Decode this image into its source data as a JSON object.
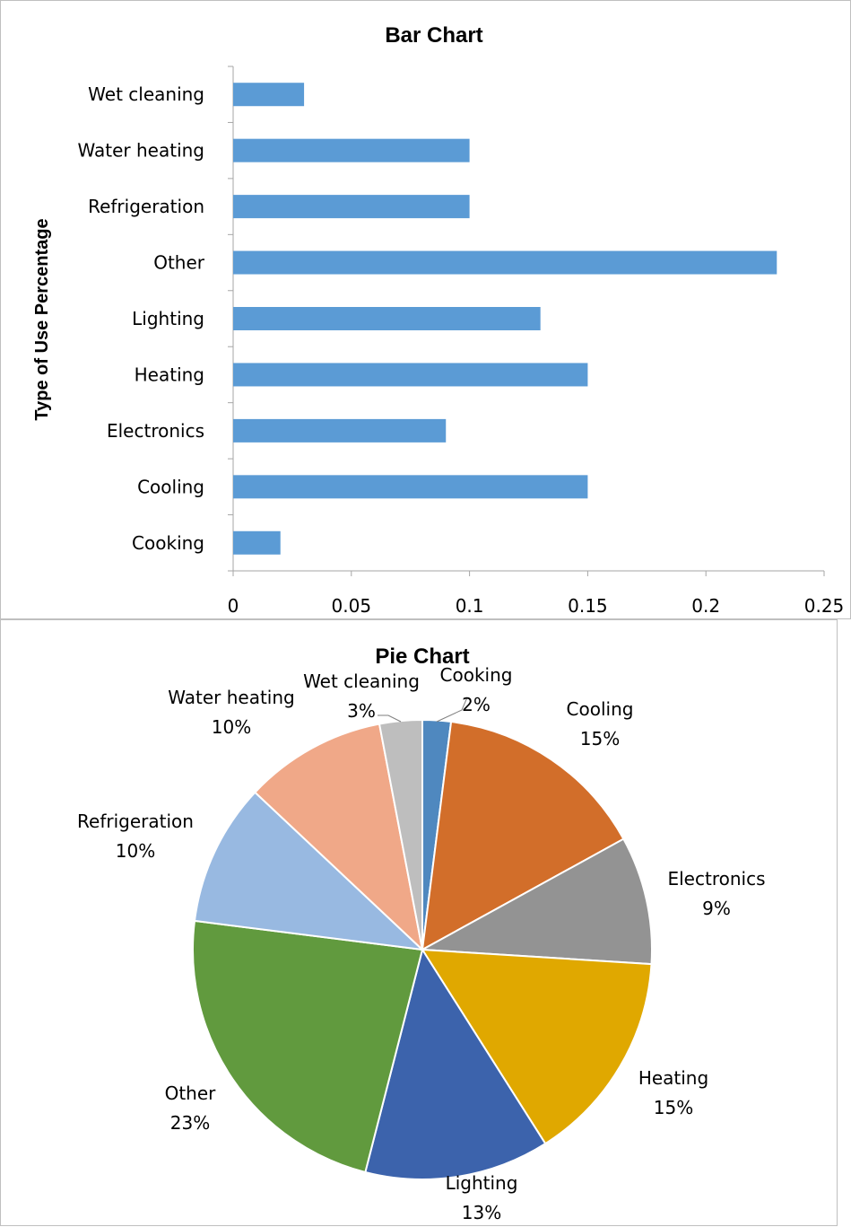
{
  "chart_data": [
    {
      "type": "bar",
      "orientation": "horizontal",
      "title": "Bar Chart",
      "xlabel": "",
      "ylabel": "Type of Use Percentage",
      "categories": [
        "Cooking",
        "Cooling",
        "Electronics",
        "Heating",
        "Lighting",
        "Other",
        "Refrigeration",
        "Water heating",
        "Wet cleaning"
      ],
      "values": [
        0.02,
        0.15,
        0.09,
        0.15,
        0.13,
        0.23,
        0.1,
        0.1,
        0.03
      ],
      "xlim": [
        0,
        0.25
      ],
      "xticks": [
        "0",
        "0.05",
        "0.1",
        "0.15",
        "0.2",
        "0.25"
      ],
      "xtick_values": [
        0,
        0.05,
        0.1,
        0.15,
        0.2,
        0.25
      ],
      "grid": false,
      "bar_color": "#5b9bd5"
    },
    {
      "type": "pie",
      "title": "Pie Chart",
      "slices": [
        {
          "label": "Cooking",
          "pct_label": "2%",
          "value": 0.02,
          "color": "#4f88bf"
        },
        {
          "label": "Cooling",
          "pct_label": "15%",
          "value": 0.15,
          "color": "#d26e2a"
        },
        {
          "label": "Electronics",
          "pct_label": "9%",
          "value": 0.09,
          "color": "#939393"
        },
        {
          "label": "Heating",
          "pct_label": "15%",
          "value": 0.15,
          "color": "#e0a800"
        },
        {
          "label": "Lighting",
          "pct_label": "13%",
          "value": 0.13,
          "color": "#3c63ac"
        },
        {
          "label": "Other",
          "pct_label": "23%",
          "value": 0.23,
          "color": "#619a3e"
        },
        {
          "label": "Refrigeration",
          "pct_label": "10%",
          "value": 0.1,
          "color": "#98b9e1"
        },
        {
          "label": "Water heating",
          "pct_label": "10%",
          "value": 0.1,
          "color": "#f0a888"
        },
        {
          "label": "Wet cleaning",
          "pct_label": "3%",
          "value": 0.03,
          "color": "#bebebe"
        }
      ]
    }
  ]
}
